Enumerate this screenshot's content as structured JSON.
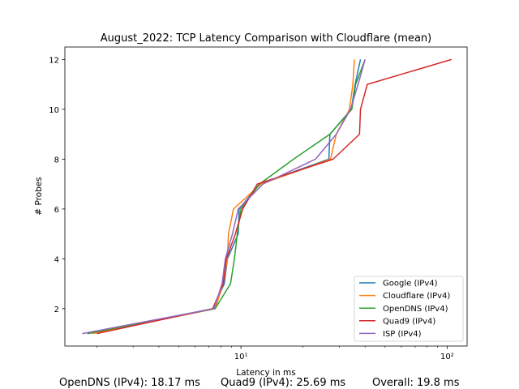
{
  "chart_data": {
    "type": "line",
    "title": "August_2022: TCP Latency Comparison with Cloudflare (mean)",
    "xlabel": "Latency in ms",
    "ylabel": "# Probes",
    "xscale": "log",
    "xlim": [
      1.4,
      125
    ],
    "ylim": [
      0.5,
      12.5
    ],
    "yticks": [
      2,
      4,
      6,
      8,
      10,
      12
    ],
    "xticks": [
      10,
      100
    ],
    "xtick_labels": [
      "10¹",
      "10²"
    ],
    "grid": false,
    "legend_position": "lower-right",
    "series": [
      {
        "name": "Google (IPv4)",
        "color": "#1f77b4",
        "x": [
          1.8,
          7.3,
          8.3,
          8.6,
          9.7,
          9.8,
          12.3,
          26.7,
          27.0,
          34.3,
          35.8,
          38.0
        ],
        "y": [
          1,
          2,
          3,
          4,
          5,
          6,
          7,
          8,
          9,
          10,
          11,
          12
        ]
      },
      {
        "name": "Cloudflare (IPv4)",
        "color": "#ff7f0e",
        "x": [
          1.9,
          7.5,
          8.2,
          8.6,
          8.7,
          9.2,
          12.5,
          27.2,
          29.0,
          33.6,
          34.9,
          35.5
        ],
        "y": [
          1,
          2,
          3,
          4,
          5,
          6,
          7,
          8,
          9,
          10,
          11,
          12
        ]
      },
      {
        "name": "OpenDNS (IPv4)",
        "color": "#2ca02c",
        "x": [
          1.8,
          7.5,
          8.9,
          9.3,
          9.6,
          10.0,
          12.3,
          18.0,
          27.0,
          34.5,
          36.0,
          40.0
        ],
        "y": [
          1,
          2,
          3,
          4,
          5,
          6,
          7,
          8,
          9,
          10,
          11,
          12
        ]
      },
      {
        "name": "Quad9 (IPv4)",
        "color": "#d62728",
        "x": [
          2.0,
          7.3,
          8.2,
          8.5,
          9.4,
          10.2,
          12.0,
          28.0,
          37.6,
          38.0,
          41.0,
          105.0
        ],
        "y": [
          1,
          2,
          3,
          4,
          5,
          6,
          7,
          8,
          9,
          10,
          11,
          12
        ]
      },
      {
        "name": "ISP (IPv4)",
        "color": "#9467bd",
        "x": [
          1.7,
          7.4,
          8.1,
          8.4,
          9.1,
          9.7,
          12.8,
          23.0,
          29.0,
          34.0,
          37.0,
          40.0
        ],
        "y": [
          1,
          2,
          3,
          4,
          5,
          6,
          7,
          8,
          9,
          10,
          11,
          12
        ]
      }
    ]
  },
  "footer": {
    "opendns": "OpenDNS (IPv4): 18.17 ms",
    "quad9": "Quad9 (IPv4): 25.69 ms",
    "overall": "Overall: 19.8 ms"
  }
}
